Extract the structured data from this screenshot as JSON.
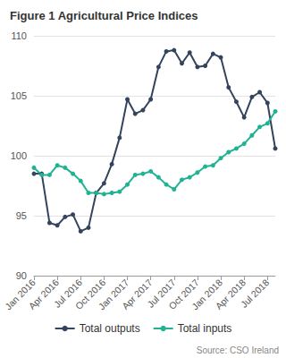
{
  "chart_data": {
    "type": "line",
    "title": "Figure 1 Agricultural Price Indices",
    "annotations": [
      "Source: CSO Ireland"
    ],
    "categories": [
      "Jan 2016",
      null,
      null,
      "Apr 2016",
      null,
      null,
      "Jul 2016",
      null,
      null,
      "Oct 2016",
      null,
      null,
      "Jan 2017",
      null,
      null,
      "Apr 2017",
      null,
      null,
      "Jul 2017",
      null,
      null,
      "Oct 2017",
      null,
      null,
      "Jan 2018",
      null,
      null,
      "Apr 2018",
      null,
      null,
      "Jul 2018",
      null
    ],
    "series": [
      {
        "name": "Total outputs",
        "color": "#34435e",
        "marker": "circle",
        "values": [
          98.5,
          98.5,
          94.4,
          94.2,
          94.9,
          95.1,
          93.7,
          94.0,
          96.9,
          97.7,
          99.3,
          101.5,
          104.7,
          103.5,
          103.8,
          104.7,
          107.4,
          108.7,
          108.8,
          107.7,
          108.6,
          107.4,
          107.5,
          108.5,
          108.2,
          105.7,
          104.5,
          103.2,
          104.9,
          105.3,
          104.4,
          100.6
        ]
      },
      {
        "name": "Total inputs",
        "color": "#1fb394",
        "marker": "circle",
        "values": [
          99.0,
          98.4,
          98.4,
          99.2,
          99.0,
          98.5,
          97.9,
          96.9,
          96.9,
          96.8,
          96.9,
          97.0,
          97.6,
          98.4,
          98.5,
          98.7,
          98.2,
          97.6,
          97.2,
          98.0,
          98.2,
          98.6,
          99.1,
          99.2,
          99.8,
          100.3,
          100.6,
          101.0,
          101.7,
          102.4,
          102.7,
          103.7
        ]
      }
    ],
    "ylim": [
      90,
      110
    ],
    "yticks": [
      90,
      95,
      100,
      105,
      110
    ],
    "grid": true,
    "legend": "bottom"
  }
}
